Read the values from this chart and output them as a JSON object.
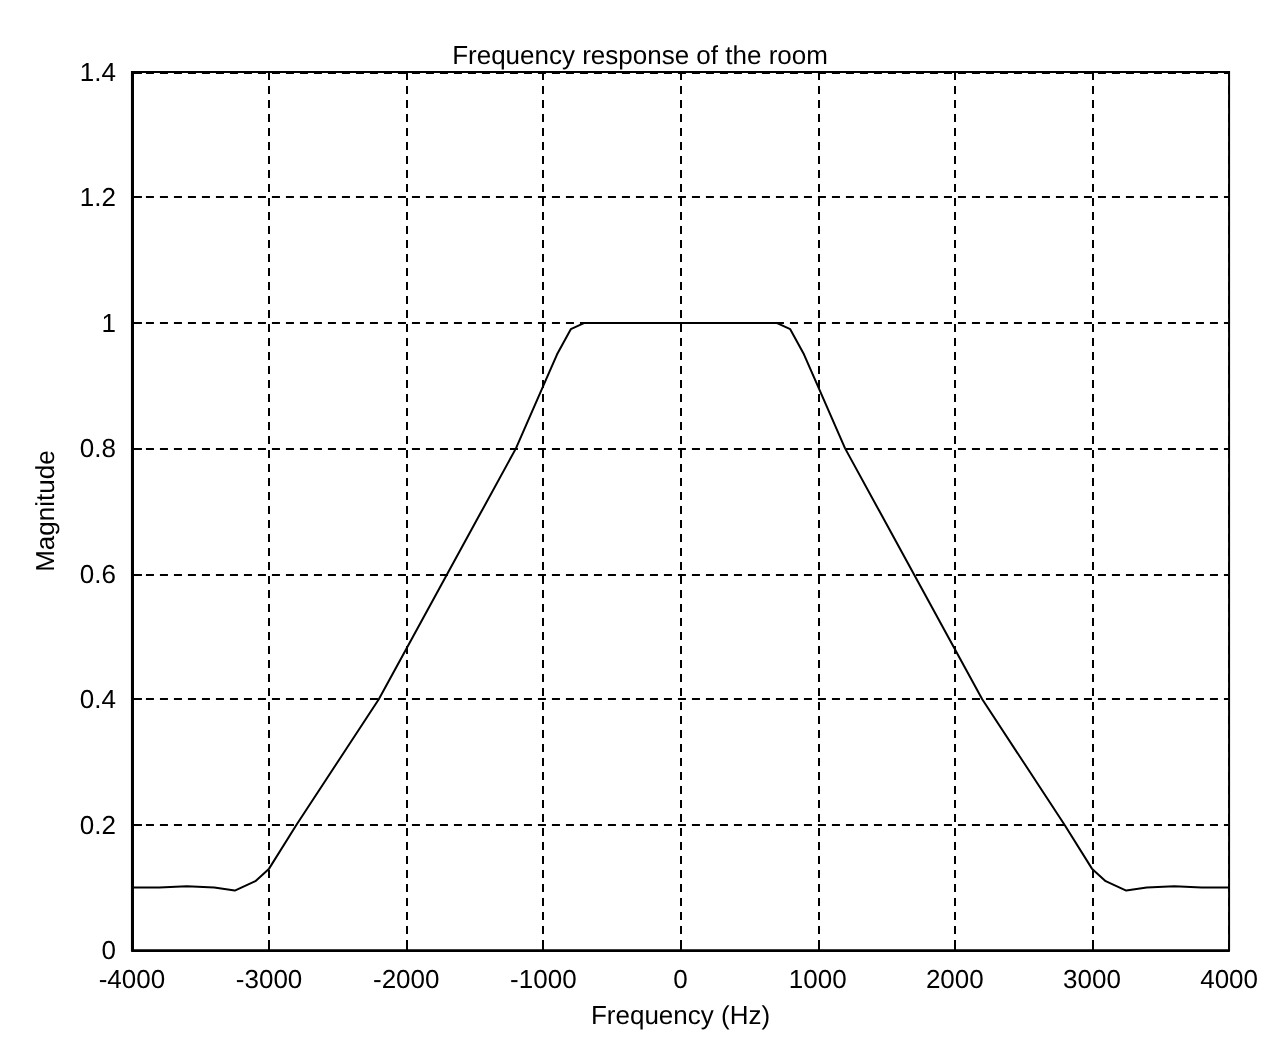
{
  "chart_data": {
    "type": "line",
    "title": "Frequency response of the room",
    "xlabel": "Frequency (Hz)",
    "ylabel": "Magnitude",
    "x": [
      -4000,
      -3800,
      -3600,
      -3400,
      -3250,
      -3100,
      -3000,
      -2800,
      -2500,
      -2200,
      -1950,
      -1700,
      -1450,
      -1200,
      -1000,
      -900,
      -800,
      -700,
      0,
      700,
      800,
      900,
      1000,
      1200,
      1450,
      1700,
      1950,
      2200,
      2500,
      2800,
      3000,
      3100,
      3250,
      3400,
      3600,
      3800,
      4000
    ],
    "series": [
      {
        "color": "#000000",
        "values": [
          0.1,
          0.1,
          0.102,
          0.1,
          0.095,
          0.11,
          0.13,
          0.2,
          0.3,
          0.4,
          0.5,
          0.6,
          0.7,
          0.8,
          0.9,
          0.95,
          0.99,
          1.0,
          1.0,
          1.0,
          0.99,
          0.95,
          0.9,
          0.8,
          0.7,
          0.6,
          0.5,
          0.4,
          0.3,
          0.2,
          0.13,
          0.11,
          0.095,
          0.1,
          0.102,
          0.1,
          0.1
        ]
      }
    ],
    "xlim": [
      -4000,
      4000
    ],
    "xticks": [
      -4000,
      -3000,
      -2000,
      -1000,
      0,
      1000,
      2000,
      3000,
      4000
    ],
    "ylim": [
      0,
      1.4
    ],
    "yticks": [
      0,
      0.2,
      0.4,
      0.6,
      0.8,
      1,
      1.2,
      1.4
    ],
    "grid": true,
    "marker": "none",
    "line_style": "solid"
  }
}
